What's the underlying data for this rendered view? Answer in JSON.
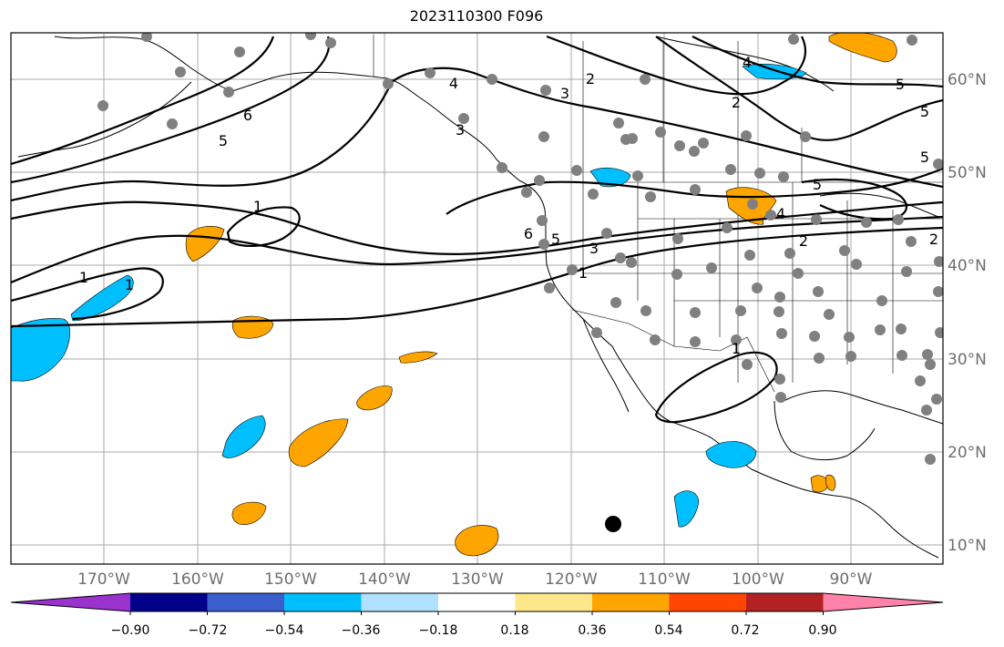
{
  "title": "2023110300 F096",
  "lon_labels": [
    "170°W",
    "160°W",
    "150°W",
    "140°W",
    "130°W",
    "120°W",
    "110°W",
    "100°W",
    "90°W"
  ],
  "lat_labels": [
    "60°N",
    "50°N",
    "40°N",
    "30°N",
    "20°N",
    "10°N"
  ],
  "colorbar": {
    "colors": [
      "#9a32cd",
      "#00008b",
      "#3a5fcd",
      "#00bfff",
      "#b0e2ff",
      "#ffffff",
      "#fce78a",
      "#ffa500",
      "#ff4500",
      "#b22222",
      "#ff82ab"
    ],
    "labels": [
      "−0.90",
      "−0.72",
      "−0.54",
      "−0.36",
      "−0.18",
      "0.18",
      "0.36",
      "0.54",
      "0.72",
      "0.90"
    ]
  },
  "contour_labels": [
    "1",
    "1",
    "1",
    "2",
    "2",
    "3",
    "3",
    "4",
    "4",
    "4",
    "5",
    "5",
    "5",
    "5",
    "5",
    "6",
    "6",
    "1",
    "5",
    "2",
    "3",
    "2",
    "1"
  ],
  "fill_colors": {
    "negative": "#00bfff",
    "positive": "#ffa500",
    "dot": "#808080",
    "marker": "#000000"
  }
}
